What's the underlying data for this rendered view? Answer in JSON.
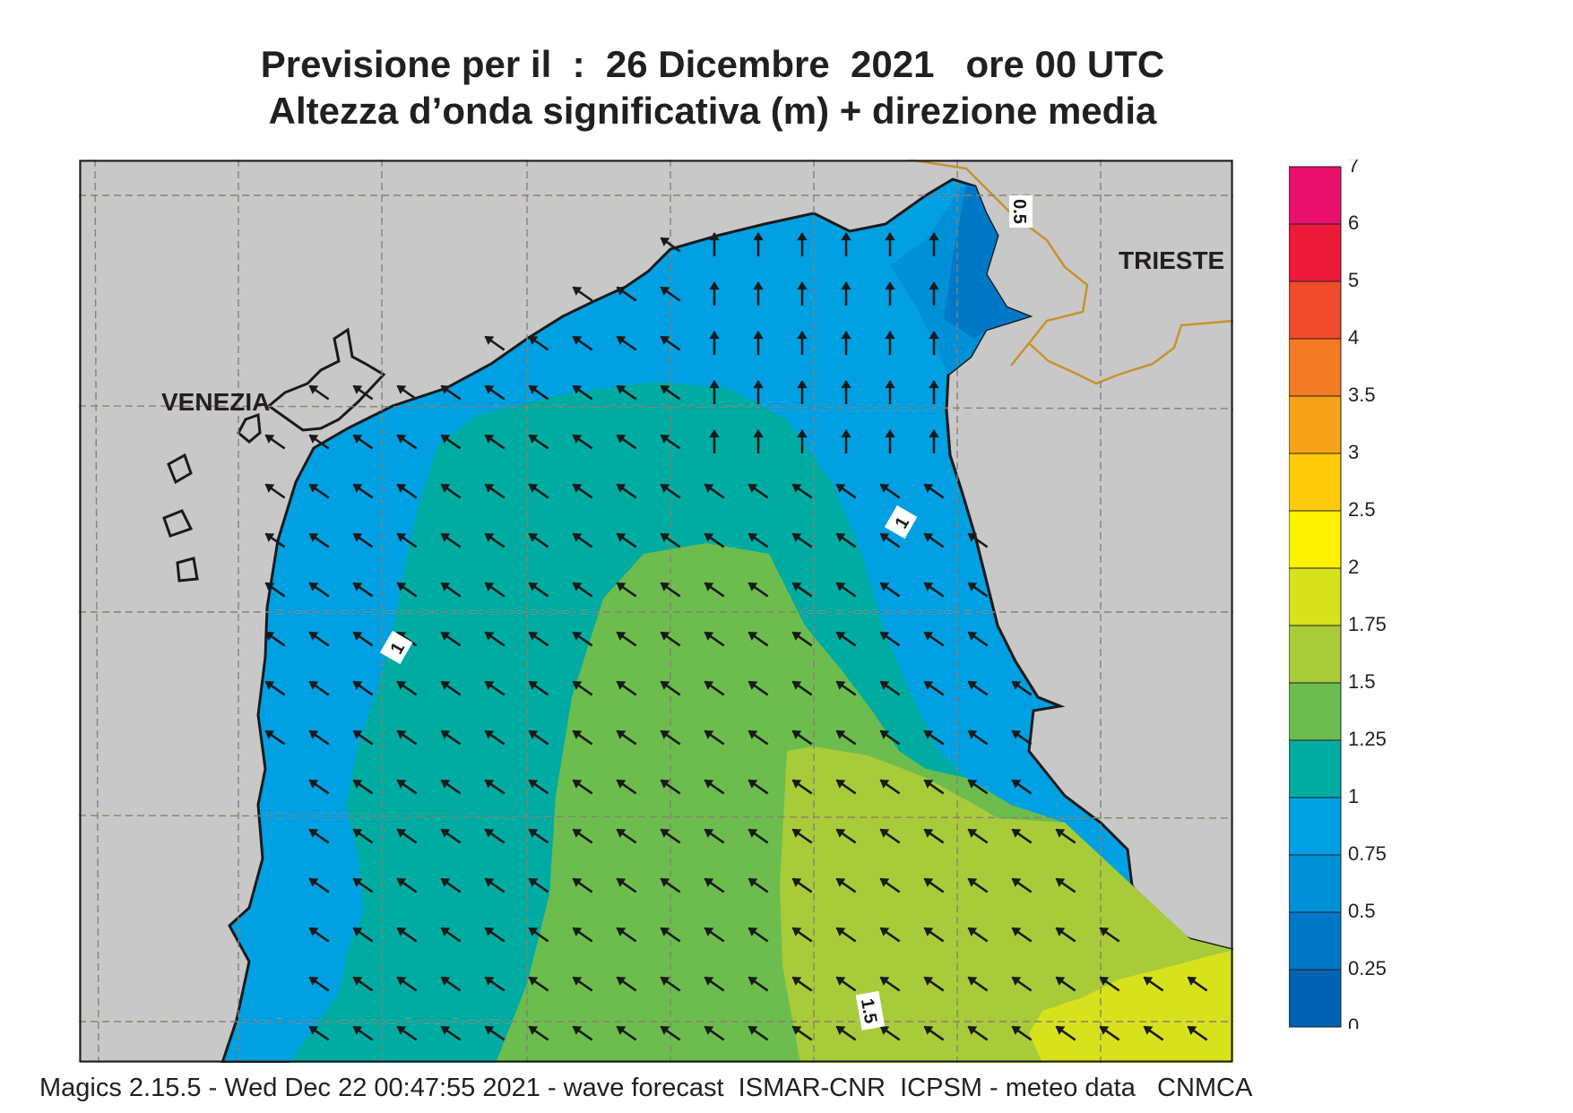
{
  "title": {
    "line1": "Previsione per il  :  26 Dicembre  2021   ore 00 UTC",
    "line2": "Altezza d’onda significativa (m) + direzione media"
  },
  "map": {
    "cities": [
      {
        "name": "VENEZIA"
      },
      {
        "name": "TRIESTE"
      }
    ],
    "contour_labels": [
      "0.5",
      "1",
      "1",
      "1.5"
    ],
    "colors": {
      "land": "#c8c8c8",
      "border": "#c8922a",
      "coast": "#1a1a1a",
      "grid": "#8a8070"
    },
    "wave_direction": "north-west, turning north toward the Trieste coast"
  },
  "legend": {
    "levels": [
      {
        "label": "7",
        "color": "#e8106a"
      },
      {
        "label": "6",
        "color": "#ed1a3a"
      },
      {
        "label": "5",
        "color": "#f04a2a"
      },
      {
        "label": "4",
        "color": "#f47a24"
      },
      {
        "label": "3.5",
        "color": "#f8a21a"
      },
      {
        "label": "3",
        "color": "#ffca0a"
      },
      {
        "label": "2.5",
        "color": "#fff200"
      },
      {
        "label": "2",
        "color": "#d7e21c"
      },
      {
        "label": "1.75",
        "color": "#a8cb3a"
      },
      {
        "label": "1.5",
        "color": "#6cbd4e"
      },
      {
        "label": "1.25",
        "color": "#00aba2"
      },
      {
        "label": "1",
        "color": "#00a0e2"
      },
      {
        "label": "0.75",
        "color": "#0090d8"
      },
      {
        "label": "0.5",
        "color": "#0078c8"
      },
      {
        "label": "0.25",
        "color": "#0062b2"
      },
      {
        "label": "0",
        "color": ""
      }
    ]
  },
  "footer": {
    "text": "Magics 2.15.5 - Wed Dec 22 00:47:55 2021 - wave forecast  ISMAR-CNR  ICPSM - meteo data   CNMCA"
  }
}
